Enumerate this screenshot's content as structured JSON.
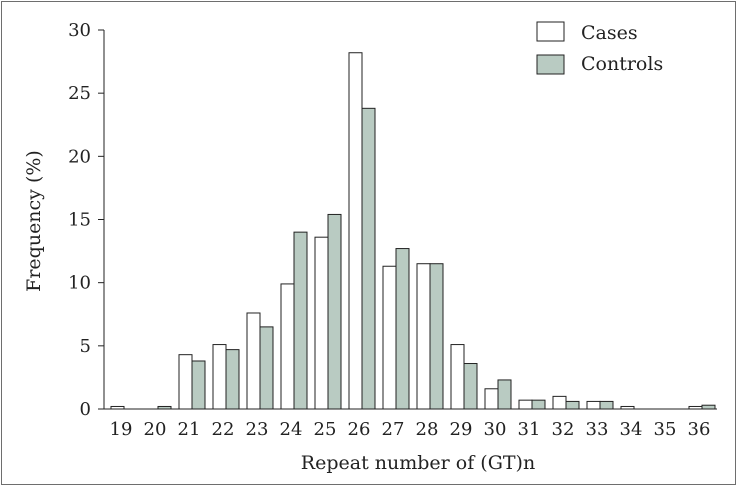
{
  "chart_data": {
    "type": "bar",
    "title": "",
    "xlabel": "Repeat number of (GT)n",
    "ylabel": "Frequency (%)",
    "ylim": [
      0,
      30
    ],
    "yticks": [
      "0",
      "5",
      "10",
      "15",
      "20",
      "25",
      "30"
    ],
    "grid": false,
    "legend_position": "top-right",
    "categories": [
      "19",
      "20",
      "21",
      "22",
      "23",
      "24",
      "25",
      "26",
      "27",
      "28",
      "29",
      "30",
      "31",
      "32",
      "33",
      "34",
      "35",
      "36"
    ],
    "series": [
      {
        "name": "Cases",
        "color": "#ffffff",
        "values": [
          0.2,
          0,
          4.3,
          5.1,
          7.6,
          9.9,
          13.6,
          28.2,
          11.3,
          11.5,
          5.1,
          1.6,
          0.7,
          1.0,
          0.6,
          0.2,
          0,
          0.2
        ]
      },
      {
        "name": "Controls",
        "color": "#b9cbc2",
        "values": [
          0,
          0.2,
          3.8,
          4.7,
          6.5,
          14.0,
          15.4,
          23.8,
          12.7,
          11.5,
          3.6,
          2.3,
          0.7,
          0.6,
          0.6,
          0,
          0,
          0.3
        ]
      }
    ]
  }
}
